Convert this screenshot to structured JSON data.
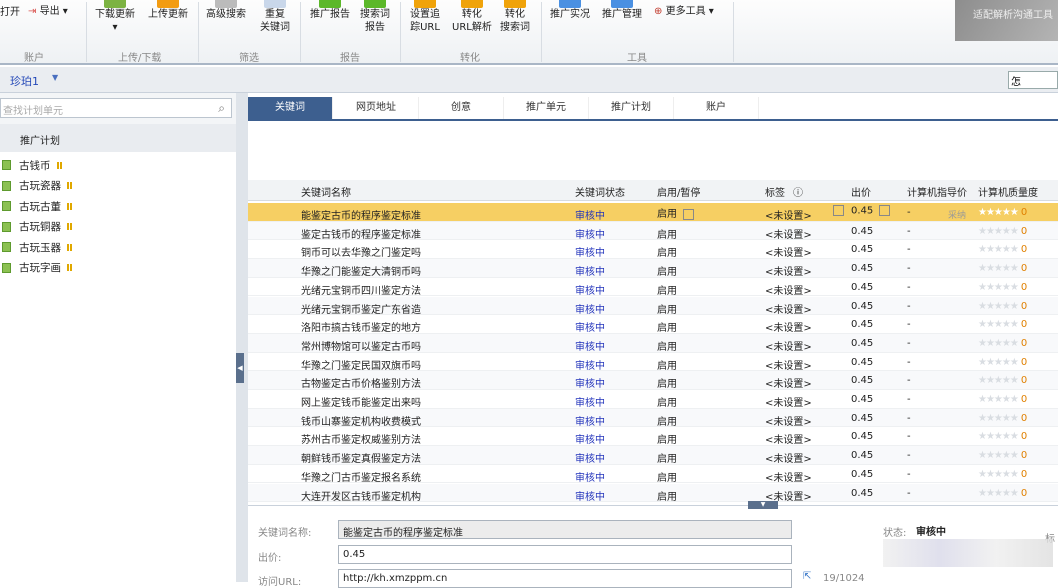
{
  "toolbar": {
    "open": "打开",
    "export": "导出",
    "download_update": "下载更新",
    "upload_update": "上传更新",
    "advanced_search": "高级搜索",
    "dup_kw_1": "重复",
    "dup_kw_2": "关键词",
    "promo_report": "推广报告",
    "search_report_1": "搜索词",
    "search_report_2": "报告",
    "track_url_1": "设置追",
    "track_url_2": "踪URL",
    "conv_url_1": "转化",
    "conv_url_2": "URL解析",
    "conv_search_1": "转化",
    "conv_search_2": "搜索词",
    "live": "推广实况",
    "manage": "推广管理",
    "more_tools": "更多工具",
    "groups": {
      "account": "账户",
      "updown": "上传/下载",
      "filter": "筛选",
      "report": "报告",
      "convert": "转化",
      "tools": "工具"
    },
    "promo_banner": "适配解析沟通工具"
  },
  "account": {
    "name": "珍珀1",
    "search_value": "怎"
  },
  "left": {
    "search_placeholder": "查找计划单元",
    "header": "推广计划",
    "plans": [
      "古钱币",
      "古玩瓷器",
      "古玩古董",
      "古玩铜器",
      "古玩玉器",
      "古玩字画"
    ]
  },
  "tabs": [
    "关键词",
    "网页地址",
    "创意",
    "推广单元",
    "推广计划",
    "账户"
  ],
  "grid": {
    "columns": [
      "关键词名称",
      "关键词状态",
      "启用/暂停",
      "标签",
      "出价",
      "计算机指导价",
      "计算机质量度"
    ],
    "adopt": "采纳",
    "rows": [
      {
        "name": "能鉴定古币的程序鉴定标准",
        "status": "审核中",
        "enabled": "启用",
        "tag": "<未设置>",
        "price": "0.45",
        "guide": "-",
        "quality": "0"
      },
      {
        "name": "鉴定古钱币的程序鉴定标准",
        "status": "审核中",
        "enabled": "启用",
        "tag": "<未设置>",
        "price": "0.45",
        "guide": "-",
        "quality": "0"
      },
      {
        "name": "铜币可以去华豫之门鉴定吗",
        "status": "审核中",
        "enabled": "启用",
        "tag": "<未设置>",
        "price": "0.45",
        "guide": "-",
        "quality": "0"
      },
      {
        "name": "华豫之门能鉴定大清铜币吗",
        "status": "审核中",
        "enabled": "启用",
        "tag": "<未设置>",
        "price": "0.45",
        "guide": "-",
        "quality": "0"
      },
      {
        "name": "光绪元宝铜币四川鉴定方法",
        "status": "审核中",
        "enabled": "启用",
        "tag": "<未设置>",
        "price": "0.45",
        "guide": "-",
        "quality": "0"
      },
      {
        "name": "光绪元宝铜币鉴定广东省造",
        "status": "审核中",
        "enabled": "启用",
        "tag": "<未设置>",
        "price": "0.45",
        "guide": "-",
        "quality": "0"
      },
      {
        "name": "洛阳市搞古钱币鉴定的地方",
        "status": "审核中",
        "enabled": "启用",
        "tag": "<未设置>",
        "price": "0.45",
        "guide": "-",
        "quality": "0"
      },
      {
        "name": "常州博物馆可以鉴定古币吗",
        "status": "审核中",
        "enabled": "启用",
        "tag": "<未设置>",
        "price": "0.45",
        "guide": "-",
        "quality": "0"
      },
      {
        "name": "华豫之门鉴定民国双旗币吗",
        "status": "审核中",
        "enabled": "启用",
        "tag": "<未设置>",
        "price": "0.45",
        "guide": "-",
        "quality": "0"
      },
      {
        "name": "古物鉴定古币价格鉴别方法",
        "status": "审核中",
        "enabled": "启用",
        "tag": "<未设置>",
        "price": "0.45",
        "guide": "-",
        "quality": "0"
      },
      {
        "name": "网上鉴定钱币能鉴定出来吗",
        "status": "审核中",
        "enabled": "启用",
        "tag": "<未设置>",
        "price": "0.45",
        "guide": "-",
        "quality": "0"
      },
      {
        "name": "钱币山寨鉴定机构收费模式",
        "status": "审核中",
        "enabled": "启用",
        "tag": "<未设置>",
        "price": "0.45",
        "guide": "-",
        "quality": "0"
      },
      {
        "name": "苏州古币鉴定权威鉴别方法",
        "status": "审核中",
        "enabled": "启用",
        "tag": "<未设置>",
        "price": "0.45",
        "guide": "-",
        "quality": "0"
      },
      {
        "name": "朝鲜钱币鉴定真假鉴定方法",
        "status": "审核中",
        "enabled": "启用",
        "tag": "<未设置>",
        "price": "0.45",
        "guide": "-",
        "quality": "0"
      },
      {
        "name": "华豫之门古币鉴定报名系统",
        "status": "审核中",
        "enabled": "启用",
        "tag": "<未设置>",
        "price": "0.45",
        "guide": "-",
        "quality": "0"
      },
      {
        "name": "大连开发区古钱币鉴定机构",
        "status": "审核中",
        "enabled": "启用",
        "tag": "<未设置>",
        "price": "0.45",
        "guide": "-",
        "quality": "0"
      }
    ]
  },
  "detail": {
    "name_label": "关键词名称:",
    "name_value": "能鉴定古币的程序鉴定标准",
    "price_label": "出价:",
    "price_value": "0.45",
    "url_label": "访问URL:",
    "url_value": "http://kh.xmzppm.cn",
    "url_count": "19/1024",
    "status_label": "状态:",
    "status_value": "审核中",
    "tag_label_partial": "标"
  },
  "colors": {
    "selected_row": "#f6cf63",
    "tab_active": "#3d5f8f",
    "status_text": "#2233bb"
  }
}
